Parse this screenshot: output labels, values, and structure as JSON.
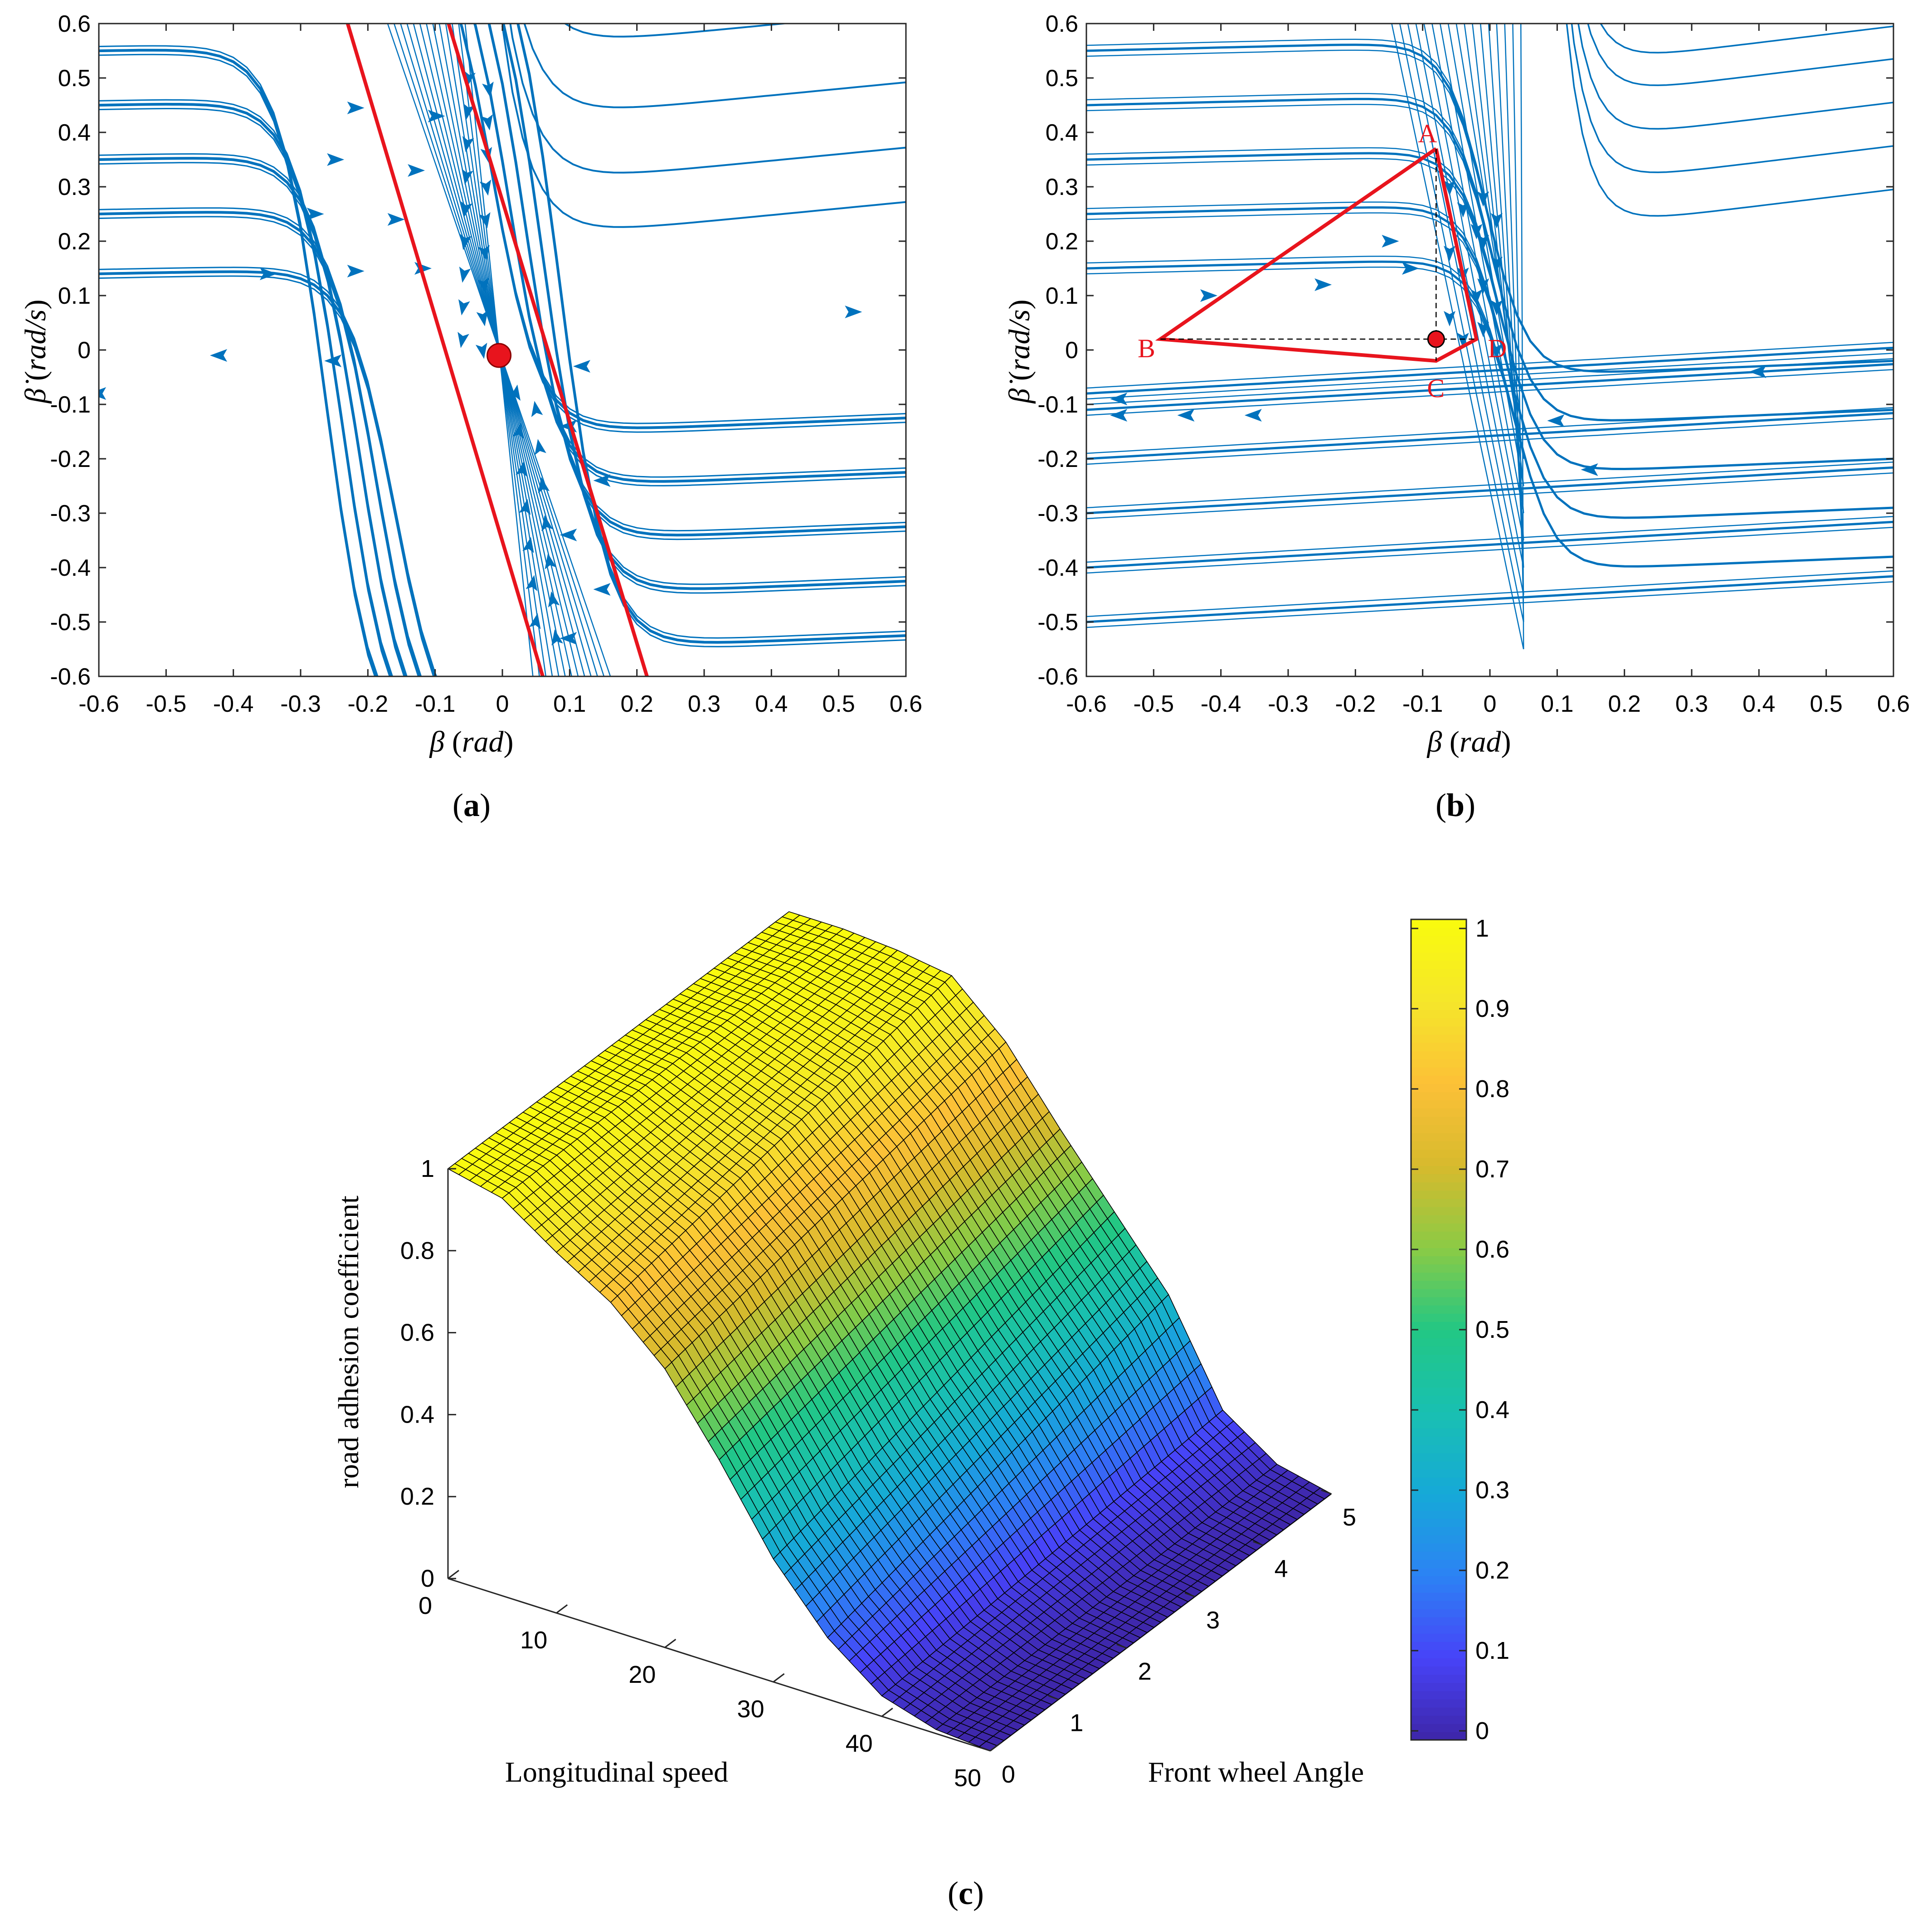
{
  "chart_data": [
    {
      "id": "a",
      "type": "phase-portrait",
      "panel_label": "a",
      "xlabel": "β",
      "xlabel_unit": "rad",
      "ylabel": "β̇",
      "ylabel_unit": "rad/s",
      "xlim": [
        -0.6,
        0.6
      ],
      "ylim": [
        -0.6,
        0.6
      ],
      "xticks": [
        "-0.6",
        "-0.5",
        "-0.4",
        "-0.3",
        "-0.2",
        "-0.1",
        "0",
        "0.1",
        "0.2",
        "0.3",
        "0.4",
        "0.5",
        "0.6"
      ],
      "yticks": [
        "-0.6",
        "-0.5",
        "-0.4",
        "-0.3",
        "-0.2",
        "-0.1",
        "0",
        "0.1",
        "0.2",
        "0.3",
        "0.4",
        "0.5",
        "0.6"
      ],
      "equilibrium": {
        "x": -0.005,
        "y": -0.01
      },
      "stability_boundaries": [
        {
          "name": "left-boundary",
          "points": [
            [
              -0.23,
              0.6
            ],
            [
              0.06,
              -0.6
            ]
          ]
        },
        {
          "name": "right-boundary",
          "points": [
            [
              -0.08,
              0.6
            ],
            [
              0.215,
              -0.6
            ]
          ]
        }
      ],
      "streamline_levels": [
        0.55,
        0.45,
        0.35,
        0.25,
        0.14,
        -0.14,
        -0.24,
        -0.34,
        -0.44,
        -0.54
      ]
    },
    {
      "id": "b",
      "type": "phase-portrait",
      "panel_label": "b",
      "xlabel": "β",
      "xlabel_unit": "rad",
      "ylabel": "β̇",
      "ylabel_unit": "rad/s",
      "xlim": [
        -0.6,
        0.6
      ],
      "ylim": [
        -0.6,
        0.6
      ],
      "xticks": [
        "-0.6",
        "-0.5",
        "-0.4",
        "-0.3",
        "-0.2",
        "-0.1",
        "0",
        "0.1",
        "0.2",
        "0.3",
        "0.4",
        "0.5",
        "0.6"
      ],
      "yticks": [
        "-0.6",
        "-0.5",
        "-0.4",
        "-0.3",
        "-0.2",
        "-0.1",
        "0",
        "0.1",
        "0.2",
        "0.3",
        "0.4",
        "0.5",
        "0.6"
      ],
      "equilibrium": {
        "x": -0.08,
        "y": 0.02
      },
      "stability_region": [
        {
          "label": "A",
          "x": -0.08,
          "y": 0.37
        },
        {
          "label": "B",
          "x": -0.49,
          "y": 0.02
        },
        {
          "label": "C",
          "x": -0.08,
          "y": -0.02
        },
        {
          "label": "D",
          "x": -0.02,
          "y": 0.02
        }
      ],
      "streamline_levels": [
        0.55,
        0.45,
        0.35,
        0.25,
        0.15,
        -0.08,
        -0.11,
        -0.2,
        -0.3,
        -0.4,
        -0.5
      ]
    },
    {
      "id": "c",
      "type": "surface",
      "panel_label": "c",
      "xlabel": "Longitudinal speed",
      "ylabel": "Front wheel Angle",
      "zlabel": "road adhesion coefficient",
      "xlim": [
        0,
        50
      ],
      "ylim": [
        0,
        5
      ],
      "zlim": [
        0,
        1
      ],
      "xticks": [
        "0",
        "10",
        "20",
        "30",
        "40",
        "50"
      ],
      "yticks": [
        "0",
        "1",
        "2",
        "3",
        "4",
        "5"
      ],
      "zticks": [
        "0",
        "0.2",
        "0.4",
        "0.6",
        "0.8",
        "1"
      ],
      "colorbar_ticks": [
        "0",
        "0.1",
        "0.2",
        "0.3",
        "0.4",
        "0.5",
        "0.6",
        "0.7",
        "0.8",
        "0.9",
        "1"
      ],
      "colormap": [
        "#3e26a8",
        "#4743f8",
        "#2c82f4",
        "#16a9d8",
        "#19c0b1",
        "#22c784",
        "#8bcb45",
        "#d7ba2d",
        "#fcc037",
        "#f5e62a",
        "#f9fb0e"
      ],
      "surface_profile": {
        "speed": [
          0,
          5,
          10,
          15,
          20,
          25,
          30,
          35,
          40,
          45,
          50
        ],
        "adhesion_at_angle_0": [
          1.0,
          0.97,
          0.88,
          0.8,
          0.68,
          0.5,
          0.3,
          0.15,
          0.05,
          0.01,
          0.0
        ],
        "adhesion_at_angle_5": [
          1.0,
          1.0,
          0.99,
          0.97,
          0.85,
          0.68,
          0.52,
          0.36,
          0.12,
          0.03,
          0.0
        ]
      }
    }
  ]
}
